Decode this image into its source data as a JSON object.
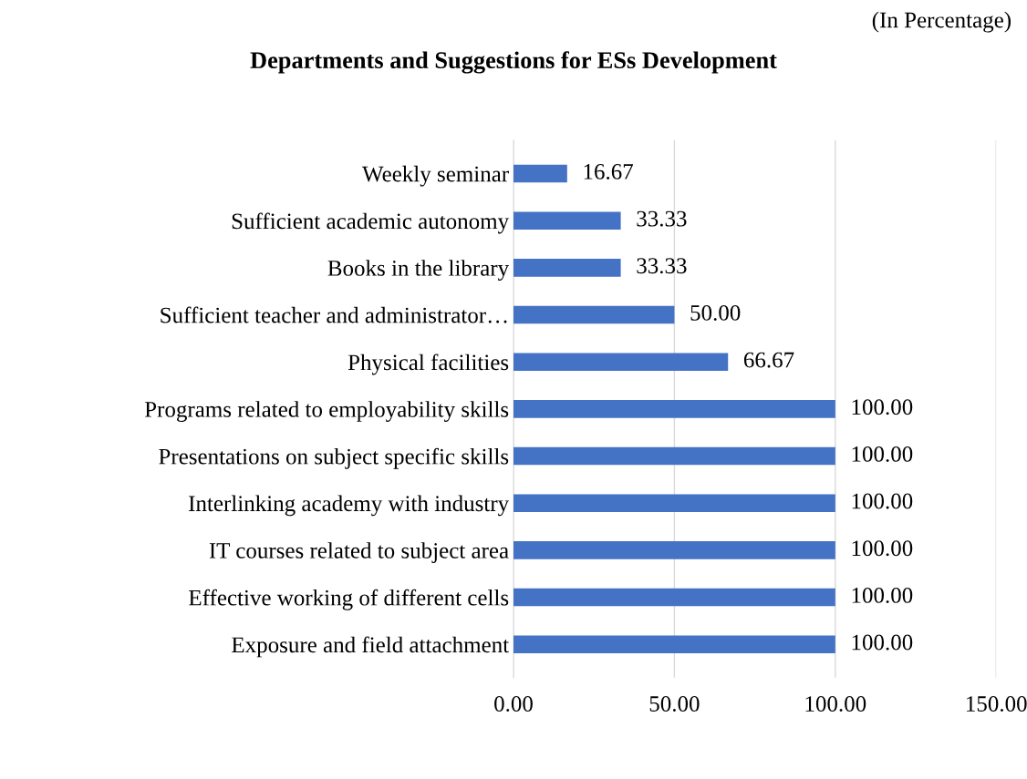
{
  "chart_data": {
    "type": "bar",
    "orientation": "horizontal",
    "title": "Departments and Suggestions for ESs Development",
    "annotations": [
      "(In Percentage)"
    ],
    "categories": [
      "Weekly seminar",
      "Sufficient academic autonomy",
      "Books in the library",
      "Sufficient teacher and administrator…",
      "Physical facilities",
      "Programs related to employability skills",
      "Presentations on subject specific skills",
      "Interlinking academy with industry",
      "IT courses related to subject area",
      "Effective working of different cells",
      "Exposure and field attachment"
    ],
    "values": [
      16.67,
      33.33,
      33.33,
      50.0,
      66.67,
      100.0,
      100.0,
      100.0,
      100.0,
      100.0,
      100.0
    ],
    "value_labels": [
      "16.67",
      "33.33",
      "33.33",
      "50.00",
      "66.67",
      "100.00",
      "100.00",
      "100.00",
      "100.00",
      "100.00",
      "100.00"
    ],
    "color": "#4472c4",
    "xlim": [
      0,
      150
    ],
    "xticks": [
      {
        "value": 0,
        "label": "0.00"
      },
      {
        "value": 50,
        "label": "50.00"
      },
      {
        "value": 100,
        "label": "100.00"
      },
      {
        "value": 150,
        "label": "150.00"
      }
    ],
    "grid": "x"
  }
}
